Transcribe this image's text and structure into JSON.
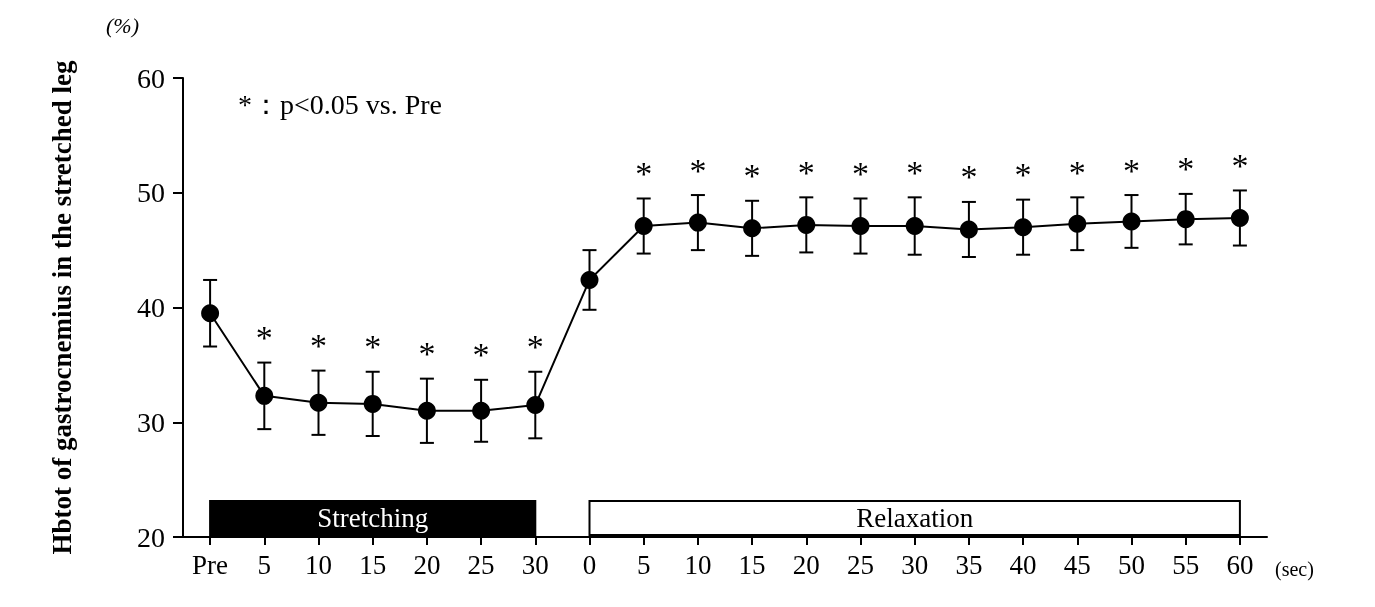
{
  "chart_data": {
    "type": "line",
    "ylabel": "Hbtot of gastrocnemius in the stretched leg",
    "xlabel": "(sec)",
    "categories": [
      "Pre",
      "5",
      "10",
      "15",
      "20",
      "25",
      "30",
      "0",
      "5",
      "10",
      "15",
      "20",
      "25",
      "30",
      "35",
      "40",
      "45",
      "50",
      "55",
      "60"
    ],
    "series": [
      {
        "color": "#000000",
        "values": [
          39.5,
          32.3,
          31.7,
          31.6,
          31.0,
          31.0,
          31.5,
          42.4,
          47.1,
          47.4,
          46.9,
          47.2,
          47.1,
          47.1,
          46.8,
          47.0,
          47.3,
          47.5,
          47.7,
          47.8
        ],
        "errors": [
          2.9,
          2.9,
          2.8,
          2.8,
          2.8,
          2.7,
          2.9,
          2.6,
          2.4,
          2.4,
          2.4,
          2.4,
          2.4,
          2.5,
          2.4,
          2.4,
          2.3,
          2.3,
          2.2,
          2.4
        ],
        "value_labels": [
          null,
          "*",
          "*",
          "*",
          "*",
          "*",
          "*",
          null,
          "*",
          "*",
          "*",
          "*",
          "*",
          "*",
          "*",
          "*",
          "*",
          "*",
          "*",
          "*"
        ]
      }
    ],
    "ylim": [
      20,
      60
    ],
    "yticks": [
      20,
      30,
      40,
      50,
      60
    ],
    "grid": false,
    "marker": "circle",
    "line_style": "solid",
    "bands": [
      {
        "axis": "x",
        "from": "Pre",
        "to": "30",
        "label": "Stretching",
        "color": "#000000"
      },
      {
        "axis": "x",
        "from": "0",
        "to": "60",
        "label": "Relaxation",
        "color": "#ffffff"
      }
    ],
    "annotations": [
      "(%)",
      "*：p<0.05 vs. Pre"
    ]
  }
}
